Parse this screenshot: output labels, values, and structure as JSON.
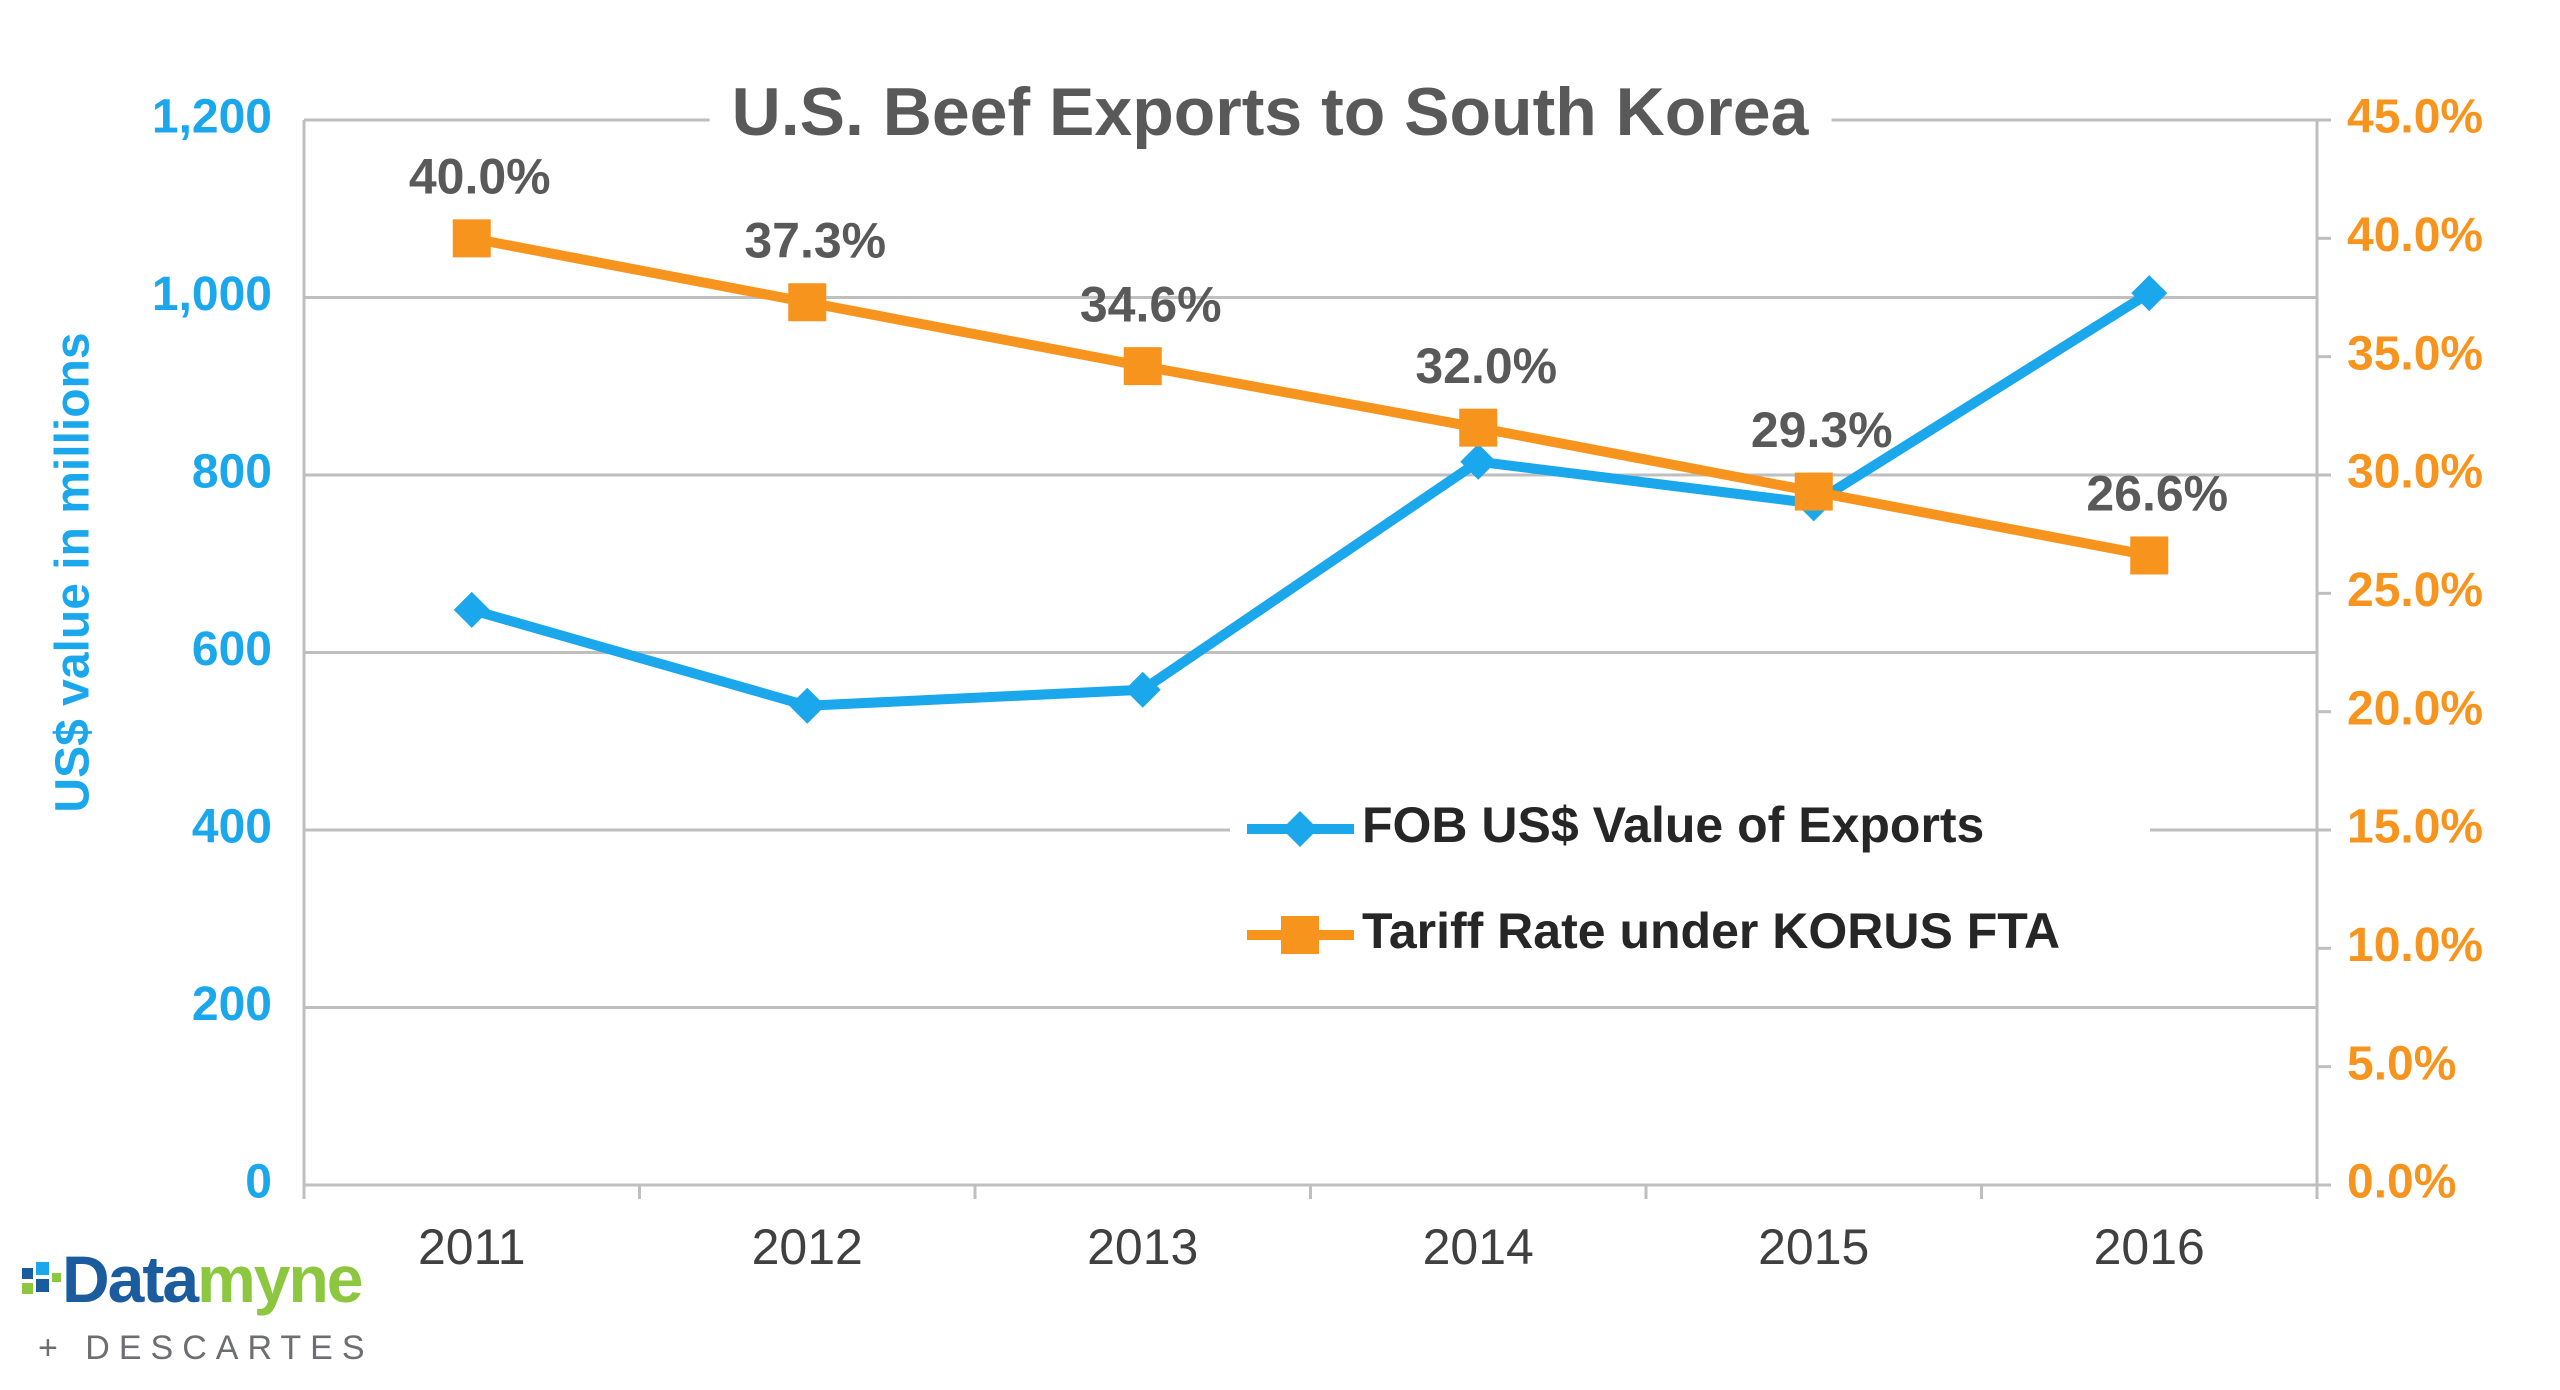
{
  "chart_data": {
    "type": "line",
    "title": "U.S. Beef Exports to South Korea",
    "y_axis_label": "US$ value in millions",
    "categories": [
      "2011",
      "2012",
      "2013",
      "2014",
      "2015",
      "2016"
    ],
    "series": [
      {
        "name": "FOB US$ Value of Exports",
        "color": "#1aa7ec",
        "marker": "diamond",
        "values": [
          648,
          540,
          558,
          815,
          768,
          1005
        ]
      },
      {
        "name": "Tariff Rate under KORUS FTA",
        "color": "#f7941d",
        "marker": "square",
        "axis": "y2",
        "values": [
          40.0,
          37.3,
          34.6,
          32.0,
          29.3,
          26.6
        ],
        "value_labels": [
          "40.0%",
          "37.3%",
          "34.6%",
          "32.0%",
          "29.3%",
          "26.6%"
        ]
      }
    ],
    "ylim": [
      0,
      1200
    ],
    "yticks": [
      0,
      200,
      400,
      600,
      800,
      {
        "value": 1000,
        "label": "1,000"
      },
      {
        "value": 1200,
        "label": "1,200"
      }
    ],
    "y2lim": [
      0,
      45
    ],
    "y2ticks": [
      {
        "value": 0,
        "label": "0.0%"
      },
      {
        "value": 5,
        "label": "5.0%"
      },
      {
        "value": 10,
        "label": "10.0%"
      },
      {
        "value": 15,
        "label": "15.0%"
      },
      {
        "value": 20,
        "label": "20.0%"
      },
      {
        "value": 25,
        "label": "25.0%"
      },
      {
        "value": 30,
        "label": "30.0%"
      },
      {
        "value": 35,
        "label": "35.0%"
      },
      {
        "value": 40,
        "label": "40.0%"
      },
      {
        "value": 45,
        "label": "45.0%"
      }
    ],
    "y_color": "#1aa7ec",
    "y2_color": "#f7941d",
    "grid": true
  },
  "logo": {
    "word_start": "Data",
    "word_end": "myne",
    "tagline": "+ DESCARTES"
  }
}
